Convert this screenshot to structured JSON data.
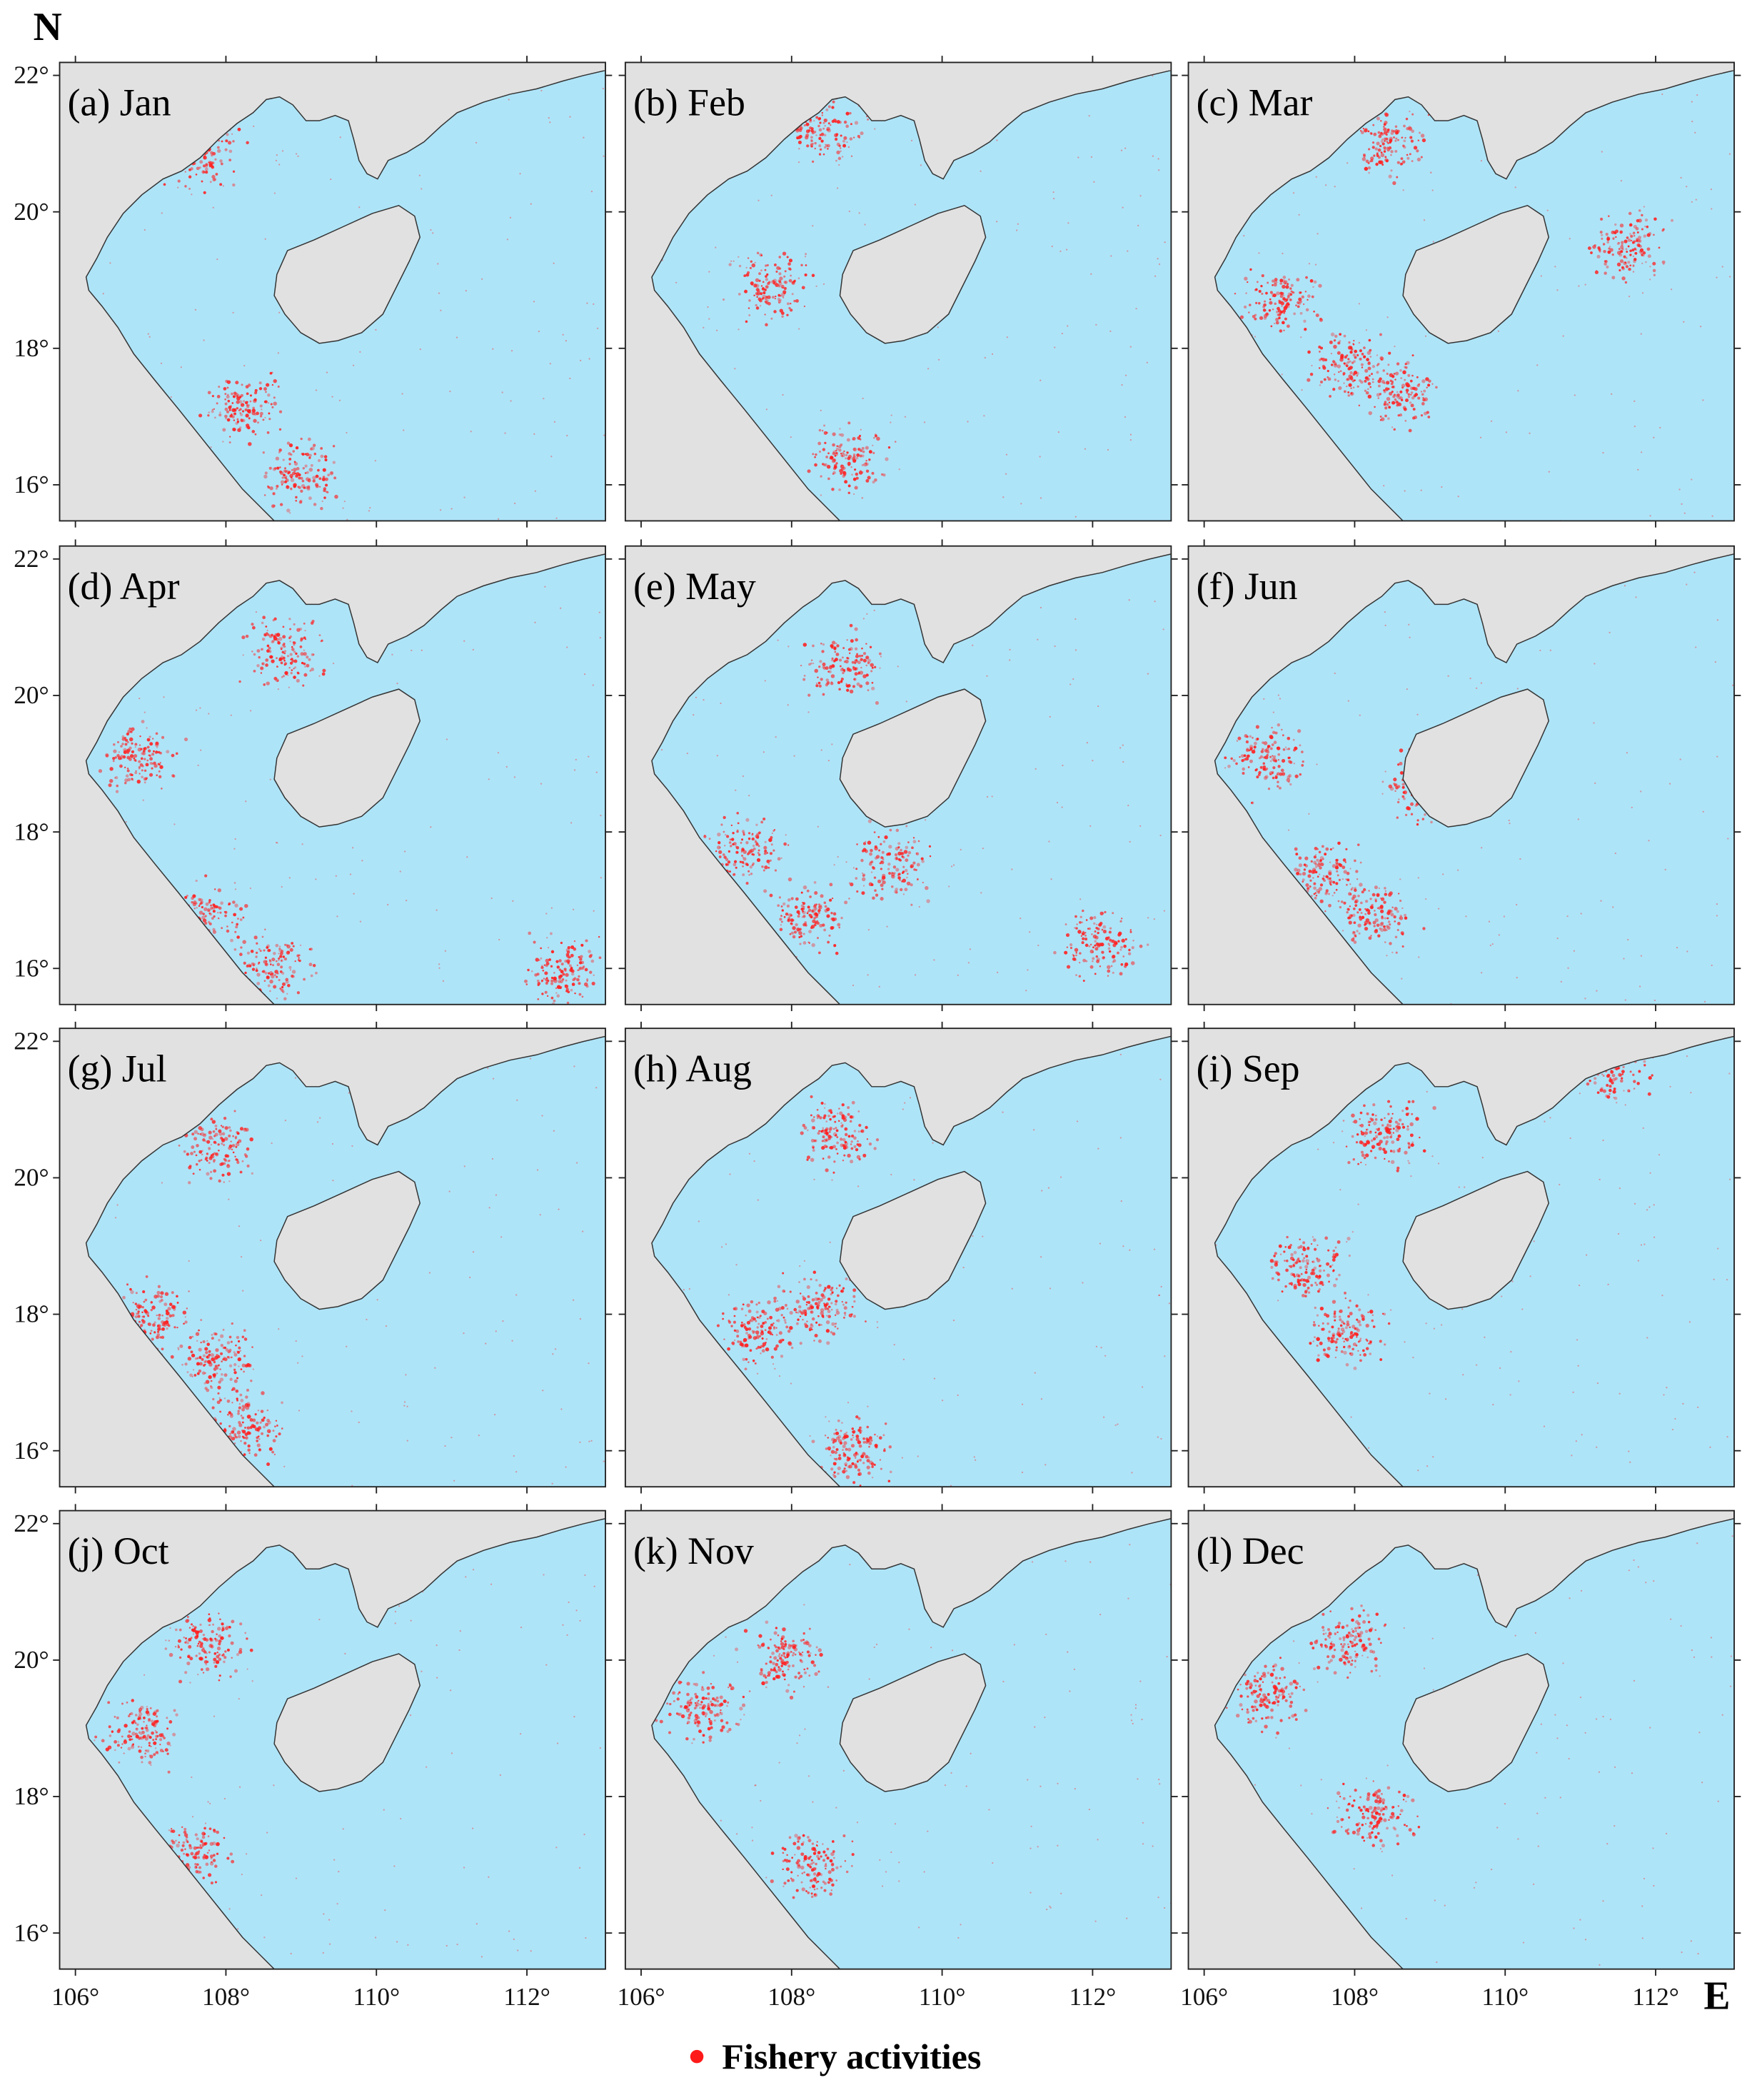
{
  "map": {
    "y_axis_label": "N",
    "x_axis_label": "E",
    "xticks": [
      {
        "value": 106,
        "label": "106°"
      },
      {
        "value": 108,
        "label": "108°"
      },
      {
        "value": 110,
        "label": "110°"
      },
      {
        "value": 112,
        "label": "112°"
      }
    ],
    "yticks": [
      {
        "value": 22,
        "label": "22°"
      },
      {
        "value": 20,
        "label": "20°"
      },
      {
        "value": 18,
        "label": "18°"
      },
      {
        "value": 16,
        "label": "16°"
      }
    ],
    "panels": [
      {
        "label": "(a) Jan"
      },
      {
        "label": "(b) Feb"
      },
      {
        "label": "(c) Mar"
      },
      {
        "label": "(d) Apr"
      },
      {
        "label": "(e) May"
      },
      {
        "label": "(f) Jun"
      },
      {
        "label": "(g) Jul"
      },
      {
        "label": "(h) Aug"
      },
      {
        "label": "(i) Sep"
      },
      {
        "label": "(j) Oct"
      },
      {
        "label": "(k) Nov"
      },
      {
        "label": "(l) Dec"
      }
    ],
    "legend": "Fishery activities"
  }
}
